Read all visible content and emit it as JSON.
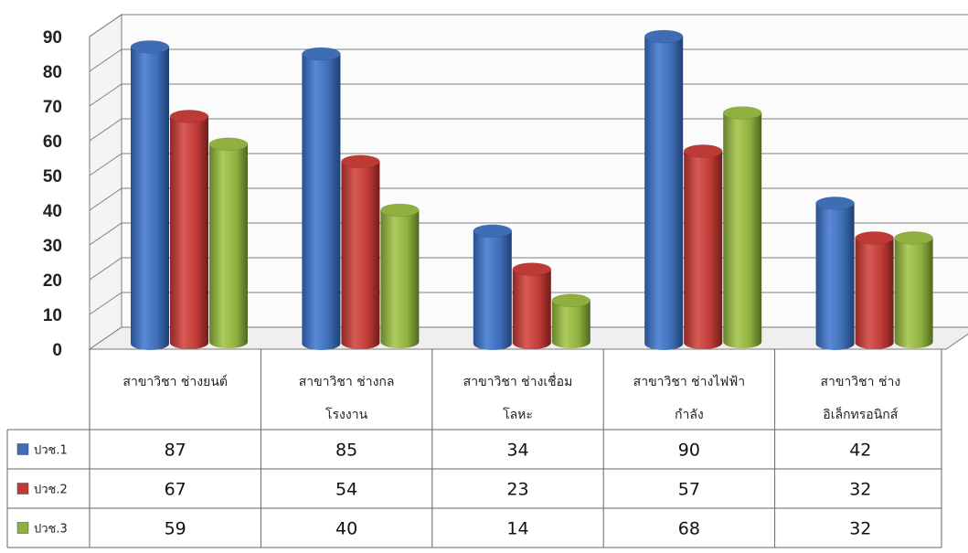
{
  "chart_data": {
    "type": "bar",
    "style": "3d-cylinder",
    "categories": [
      [
        "สาขาวิชา ช่างยนต์"
      ],
      [
        "สาขาวิชา ช่างกล",
        "โรงงาน"
      ],
      [
        "สาขาวิชา ช่างเชื่อม",
        "โลหะ"
      ],
      [
        "สาขาวิชา ช่างไฟฟ้า",
        "กำลัง"
      ],
      [
        "สาขาวิชา ช่าง",
        "อิเล็กทรอนิกส์"
      ]
    ],
    "series": [
      {
        "name": "ปวช.1",
        "color": "#3E6DB5",
        "values": [
          87,
          85,
          34,
          90,
          42
        ]
      },
      {
        "name": "ปวช.2",
        "color": "#BE3A35",
        "values": [
          67,
          54,
          23,
          57,
          32
        ]
      },
      {
        "name": "ปวช.3",
        "color": "#8FB03F",
        "values": [
          59,
          40,
          14,
          68,
          32
        ]
      }
    ],
    "ylim": [
      0,
      90
    ],
    "yticks": [
      0,
      10,
      20,
      30,
      40,
      50,
      60,
      70,
      80,
      90
    ],
    "grid": true,
    "legend": "data-table-left",
    "data_table": true
  }
}
